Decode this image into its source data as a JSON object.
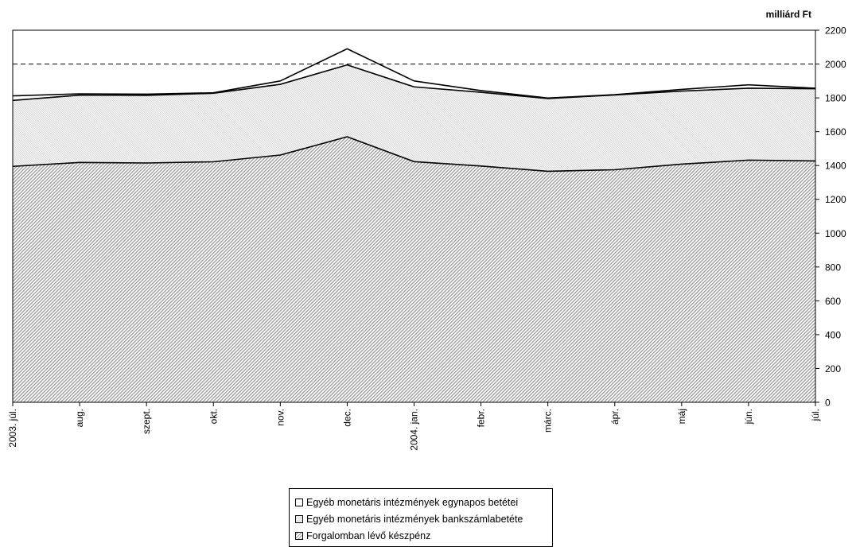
{
  "chart_data": {
    "type": "area",
    "stacked": true,
    "unit_label": "milliárd Ft",
    "categories": [
      "2003. júl.",
      "aug.",
      "szept.",
      "okt.",
      "nov.",
      "dec.",
      "2004. jan.",
      "febr.",
      "márc.",
      "ápr.",
      "máj",
      "jún.",
      "júl."
    ],
    "series": [
      {
        "name": "Forgalomban lévő készpénz",
        "values": [
          1395,
          1418,
          1415,
          1422,
          1462,
          1570,
          1423,
          1397,
          1366,
          1375,
          1408,
          1432,
          1427
        ],
        "fill": "hatch-dark"
      },
      {
        "name": "Egyéb monetáris intézmények bankszámlabetéte",
        "values": [
          390,
          398,
          400,
          405,
          418,
          425,
          442,
          436,
          430,
          442,
          432,
          425,
          427
        ],
        "fill": "hatch-light"
      },
      {
        "name": "Egyéb monetáris intézmények egynapos betétei",
        "values": [
          27,
          8,
          7,
          3,
          20,
          95,
          35,
          10,
          3,
          2,
          10,
          20,
          3
        ],
        "fill": "white"
      }
    ],
    "ylim": [
      0,
      2200
    ],
    "yticks": [
      0,
      200,
      400,
      600,
      800,
      1000,
      1200,
      1400,
      1600,
      1800,
      2000,
      2200
    ],
    "reference_line": {
      "value": 2000,
      "style": "dashed"
    },
    "y_axis_side": "right",
    "grid": false,
    "legend_position": "bottom"
  },
  "legend": {
    "items": [
      "Egyéb monetáris intézmények egynapos betétei",
      "Egyéb monetáris intézmények bankszámlabetéte",
      "Forgalomban lévő készpénz"
    ]
  },
  "colors": {
    "line": "#000000",
    "hatch_dark": "#9a9a9a",
    "hatch_light": "#d9d9d9",
    "background": "#ffffff"
  }
}
